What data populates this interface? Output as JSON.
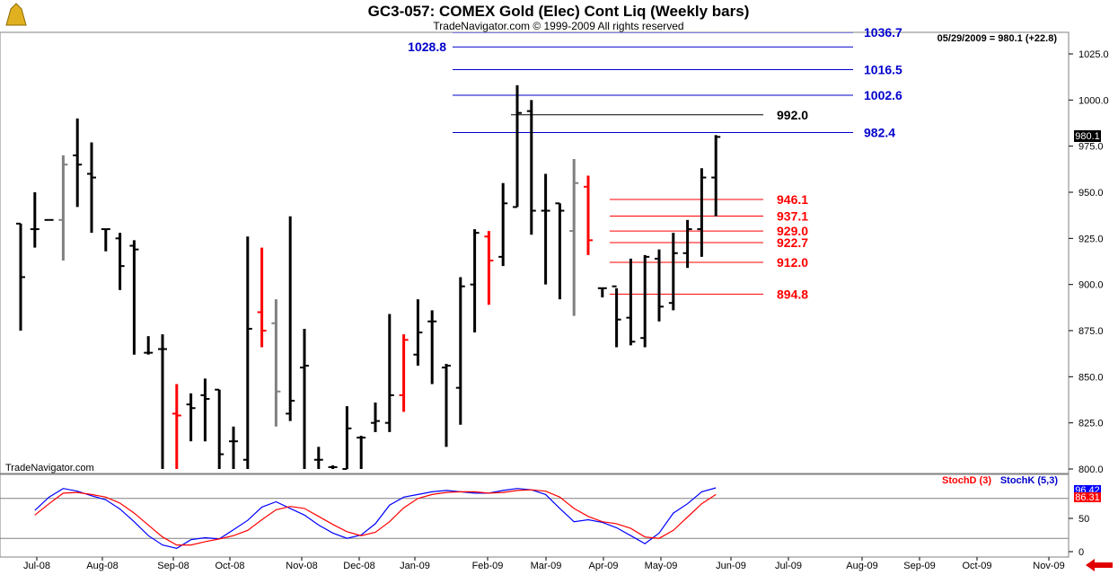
{
  "title": "GC3-057:  COMEX Gold (Elec) Cont Liq  (Weekly bars)",
  "subtitle": "TradeNavigator.com © 1999-2009 All rights reserved",
  "watermark": "TradeNavigator.com",
  "last_quote": "05/29/2009 = 980.1 (+22.8)",
  "last_price_tag": "980.1",
  "chart_data": [
    {
      "type": "ohlc",
      "title": "GC3-057:  COMEX Gold (Elec) Cont Liq  (Weekly bars)",
      "ylim": [
        800,
        1035
      ],
      "y_ticks": [
        "800.0",
        "825.0",
        "850.0",
        "875.0",
        "900.0",
        "925.0",
        "950.0",
        "975.0",
        "1000.0",
        "1025.0"
      ],
      "x_ticks": [
        "Jul-08",
        "Aug-08",
        "Sep-08",
        "Oct-08",
        "Nov-08",
        "Dec-08",
        "Jan-09",
        "Feb-09",
        "Mar-09",
        "Apr-09",
        "May-09",
        "Jun-09",
        "Jul-09",
        "Aug-09",
        "Sep-09",
        "Oct-09",
        "Nov-09"
      ],
      "colors": {
        "up": "#000000",
        "down": "#ff0000",
        "neutral": "#808080",
        "blue_level": "#0000cc",
        "red_level": "#ff0000",
        "black_level": "#000000"
      },
      "bars": [
        {
          "i": 0,
          "h": 933,
          "l": 875,
          "o": 933,
          "c": 904,
          "col": "black"
        },
        {
          "i": 1,
          "h": 950,
          "l": 920,
          "o": 930,
          "c": 930,
          "col": "black"
        },
        {
          "i": 2,
          "h": 935,
          "l": 935,
          "o": 935,
          "c": 935,
          "col": "black"
        },
        {
          "i": 3,
          "h": 970,
          "l": 913,
          "o": 935,
          "c": 965,
          "col": "gray"
        },
        {
          "i": 4,
          "h": 990,
          "l": 942,
          "o": 970,
          "c": 965,
          "col": "black"
        },
        {
          "i": 5,
          "h": 977,
          "l": 928,
          "o": 960,
          "c": 958,
          "col": "black"
        },
        {
          "i": 6,
          "h": 930,
          "l": 918,
          "o": 930,
          "c": 930,
          "col": "black"
        },
        {
          "i": 7,
          "h": 928,
          "l": 897,
          "o": 925,
          "c": 910,
          "col": "black"
        },
        {
          "i": 8,
          "h": 924,
          "l": 862,
          "o": 921,
          "c": 919,
          "col": "black"
        },
        {
          "i": 9,
          "h": 872,
          "l": 862,
          "o": 863,
          "c": 863,
          "col": "black"
        },
        {
          "i": 10,
          "h": 873,
          "l": 800,
          "o": 865,
          "c": 865,
          "col": "black"
        },
        {
          "i": 11,
          "h": 846,
          "l": 800,
          "o": 830,
          "c": 829,
          "col": "red"
        },
        {
          "i": 12,
          "h": 841,
          "l": 815,
          "o": 835,
          "c": 833,
          "col": "black"
        },
        {
          "i": 13,
          "h": 849,
          "l": 815,
          "o": 840,
          "c": 838,
          "col": "black"
        },
        {
          "i": 14,
          "h": 843,
          "l": 800,
          "o": 843,
          "c": 808,
          "col": "black"
        },
        {
          "i": 15,
          "h": 823,
          "l": 800,
          "o": 815,
          "c": 815,
          "col": "black"
        },
        {
          "i": 16,
          "h": 926,
          "l": 800,
          "o": 805,
          "c": 876,
          "col": "black"
        },
        {
          "i": 17,
          "h": 920,
          "l": 866,
          "o": 885,
          "c": 875,
          "col": "red"
        },
        {
          "i": 18,
          "h": 892,
          "l": 823,
          "o": 879,
          "c": 842,
          "col": "gray"
        },
        {
          "i": 19,
          "h": 937,
          "l": 826,
          "o": 830,
          "c": 837,
          "col": "black"
        },
        {
          "i": 20,
          "h": 876,
          "l": 800,
          "o": 855,
          "c": 856,
          "col": "black"
        },
        {
          "i": 21,
          "h": 812,
          "l": 800,
          "o": 805,
          "c": 805,
          "col": "black"
        },
        {
          "i": 22,
          "h": 802,
          "l": 800,
          "o": 801,
          "c": 801,
          "col": "black"
        },
        {
          "i": 23,
          "h": 834,
          "l": 800,
          "o": 800,
          "c": 822,
          "col": "black"
        },
        {
          "i": 24,
          "h": 818,
          "l": 800,
          "o": 817,
          "c": 817,
          "col": "black"
        },
        {
          "i": 25,
          "h": 836,
          "l": 820,
          "o": 825,
          "c": 826,
          "col": "black"
        },
        {
          "i": 26,
          "h": 884,
          "l": 820,
          "o": 825,
          "c": 840,
          "col": "black"
        },
        {
          "i": 27,
          "h": 873,
          "l": 831,
          "o": 840,
          "c": 870,
          "col": "red"
        },
        {
          "i": 28,
          "h": 892,
          "l": 856,
          "o": 862,
          "c": 874,
          "col": "black"
        },
        {
          "i": 29,
          "h": 886,
          "l": 846,
          "o": 880,
          "c": 880,
          "col": "black"
        },
        {
          "i": 30,
          "h": 857,
          "l": 812,
          "o": 855,
          "c": 856,
          "col": "black"
        },
        {
          "i": 31,
          "h": 904,
          "l": 824,
          "o": 844,
          "c": 899,
          "col": "black"
        },
        {
          "i": 32,
          "h": 930,
          "l": 874,
          "o": 900,
          "c": 928,
          "col": "black"
        },
        {
          "i": 33,
          "h": 929,
          "l": 889,
          "o": 926,
          "c": 913,
          "col": "red"
        },
        {
          "i": 34,
          "h": 955,
          "l": 910,
          "o": 915,
          "c": 944,
          "col": "black"
        },
        {
          "i": 35,
          "h": 1008,
          "l": 942,
          "o": 942,
          "c": 993,
          "col": "black"
        },
        {
          "i": 36,
          "h": 1000,
          "l": 927,
          "o": 994,
          "c": 940,
          "col": "black"
        },
        {
          "i": 37,
          "h": 960,
          "l": 900,
          "o": 940,
          "c": 940,
          "col": "black"
        },
        {
          "i": 38,
          "h": 944,
          "l": 892,
          "o": 944,
          "c": 940,
          "col": "black"
        },
        {
          "i": 39,
          "h": 968,
          "l": 883,
          "o": 929,
          "c": 955,
          "col": "gray"
        },
        {
          "i": 40,
          "h": 959,
          "l": 916,
          "o": 953,
          "c": 924,
          "col": "red"
        },
        {
          "i": 41,
          "h": 898,
          "l": 893,
          "o": 898,
          "c": 898,
          "col": "black"
        },
        {
          "i": 42,
          "h": 898,
          "l": 866,
          "o": 899,
          "c": 881,
          "col": "black"
        },
        {
          "i": 43,
          "h": 914,
          "l": 867,
          "o": 882,
          "c": 869,
          "col": "black"
        },
        {
          "i": 44,
          "h": 916,
          "l": 866,
          "o": 871,
          "c": 915,
          "col": "black"
        },
        {
          "i": 45,
          "h": 919,
          "l": 880,
          "o": 914,
          "c": 888,
          "col": "black"
        },
        {
          "i": 46,
          "h": 928,
          "l": 886,
          "o": 890,
          "c": 917,
          "col": "black"
        },
        {
          "i": 47,
          "h": 935,
          "l": 909,
          "o": 917,
          "c": 930,
          "col": "black"
        },
        {
          "i": 48,
          "h": 963,
          "l": 915,
          "o": 930,
          "c": 958,
          "col": "black"
        },
        {
          "i": 49,
          "h": 981,
          "l": 937,
          "o": 958,
          "c": 980,
          "col": "black"
        }
      ],
      "levels": [
        {
          "value": 1036.7,
          "label": "1036.7",
          "color": "blue",
          "side": "right"
        },
        {
          "value": 1028.8,
          "label": "1028.8",
          "color": "blue",
          "side": "left"
        },
        {
          "value": 1016.5,
          "label": "1016.5",
          "color": "blue",
          "side": "right"
        },
        {
          "value": 1002.6,
          "label": "1002.6",
          "color": "blue",
          "side": "right"
        },
        {
          "value": 992.0,
          "label": "992.0",
          "color": "black",
          "side": "right"
        },
        {
          "value": 982.4,
          "label": "982.4",
          "color": "blue",
          "side": "right"
        },
        {
          "value": 946.1,
          "label": "946.1",
          "color": "red",
          "side": "right"
        },
        {
          "value": 937.1,
          "label": "937.1",
          "color": "red",
          "side": "right"
        },
        {
          "value": 929.0,
          "label": "929.0",
          "color": "red",
          "side": "right"
        },
        {
          "value": 922.7,
          "label": "922.7",
          "color": "red",
          "side": "right"
        },
        {
          "value": 912.0,
          "label": "912.0",
          "color": "red",
          "side": "right"
        },
        {
          "value": 894.8,
          "label": "894.8",
          "color": "red",
          "side": "right"
        }
      ]
    },
    {
      "type": "line",
      "title": "",
      "ylim": [
        -5,
        105
      ],
      "y_ticks": [
        "0",
        "50"
      ],
      "reference_lines": [
        80,
        20
      ],
      "legend": [
        "StochD (3)",
        "StochK (5,3)"
      ],
      "last_values": {
        "stochk": "96.42",
        "stochd": "86.31"
      },
      "series": [
        {
          "name": "StochK (5,3)",
          "color": "#0000ff",
          "values": [
            62,
            82,
            95,
            91,
            84,
            78,
            64,
            45,
            24,
            10,
            5,
            18,
            21,
            19,
            33,
            47,
            67,
            75,
            65,
            55,
            40,
            28,
            20,
            25,
            42,
            70,
            82,
            86,
            90,
            92,
            90,
            88,
            88,
            92,
            95,
            93,
            86,
            65,
            45,
            48,
            44,
            36,
            24,
            12,
            28,
            58,
            72,
            90,
            96
          ]
        },
        {
          "name": "StochD (3)",
          "color": "#ff0000",
          "values": [
            55,
            72,
            88,
            89,
            86,
            82,
            73,
            58,
            40,
            22,
            10,
            10,
            15,
            19,
            24,
            32,
            48,
            63,
            68,
            65,
            53,
            41,
            30,
            24,
            29,
            45,
            66,
            80,
            86,
            89,
            90,
            90,
            88,
            89,
            92,
            93,
            91,
            82,
            65,
            53,
            45,
            42,
            35,
            22,
            20,
            32,
            52,
            72,
            86
          ]
        }
      ]
    }
  ]
}
